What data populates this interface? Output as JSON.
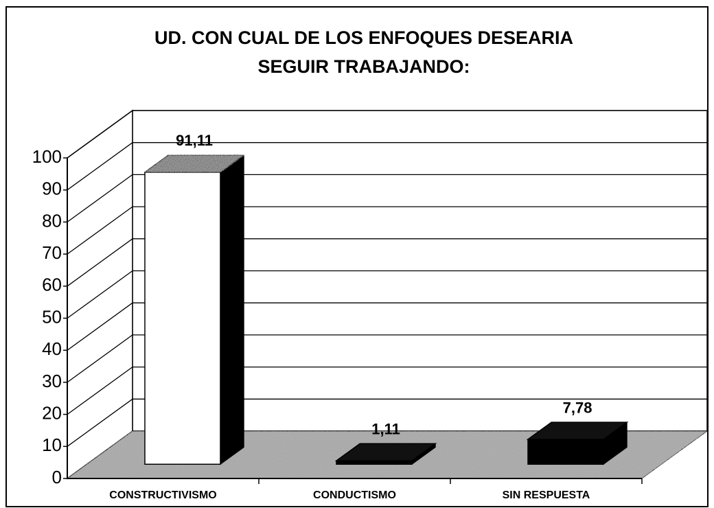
{
  "chart_data": {
    "type": "bar3d",
    "title": [
      "UD. CON CUAL DE LOS ENFOQUES DESEARIA",
      "SEGUIR TRABAJANDO:"
    ],
    "categories": [
      "CONSTRUCTIVISMO",
      "CONDUCTISMO",
      "SIN RESPUESTA"
    ],
    "values": [
      91.11,
      1.11,
      7.78
    ],
    "value_labels": [
      "91,11",
      "1,11",
      "7,78"
    ],
    "ylim": [
      0,
      100
    ],
    "yticks": [
      0,
      10,
      20,
      30,
      40,
      50,
      60,
      70,
      80,
      90,
      100
    ],
    "grid": true
  }
}
